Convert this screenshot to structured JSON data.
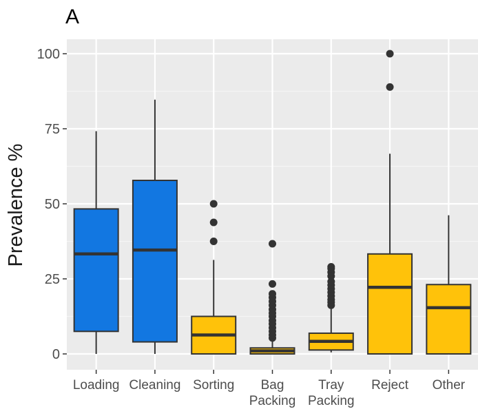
{
  "chart_data": {
    "type": "box",
    "panel_label": "A",
    "ylabel": "Prevalence %",
    "xlabel": "",
    "ylim": [
      -5,
      107
    ],
    "yticks": [
      0,
      25,
      50,
      75,
      100
    ],
    "ytick_labels": [
      "0",
      "25",
      "50",
      "75",
      "100"
    ],
    "grid": true,
    "background": "#EBEBEB",
    "categories": [
      {
        "label": [
          "Loading"
        ],
        "color": "#1277E1",
        "whisker_low": 0,
        "q1": 7.5,
        "median": 33.3,
        "q3": 48.3,
        "whisker_high": 74.2,
        "outliers": []
      },
      {
        "label": [
          "Cleaning"
        ],
        "color": "#1277E1",
        "whisker_low": 0,
        "q1": 4,
        "median": 34.6,
        "q3": 57.8,
        "whisker_high": 84.7,
        "outliers": []
      },
      {
        "label": [
          "Sorting"
        ],
        "color": "#FFC20A",
        "whisker_low": 0,
        "q1": 0,
        "median": 6.3,
        "q3": 12.5,
        "whisker_high": 31.3,
        "outliers": [
          37.5,
          43.8,
          50
        ]
      },
      {
        "label": [
          "Bag",
          "Packing"
        ],
        "color": "#FFC20A",
        "whisker_low": 0,
        "q1": 0,
        "median": 1,
        "q3": 2,
        "whisker_high": 4.5,
        "outliers": [
          5.3,
          6.3,
          7.5,
          8.7,
          10,
          11.1,
          12.5,
          13.6,
          14.8,
          16.2,
          17.5,
          18.8,
          20,
          23.3,
          36.7
        ]
      },
      {
        "label": [
          "Tray",
          "Packing"
        ],
        "color": "#FFC20A",
        "whisker_low": 0.5,
        "q1": 1.3,
        "median": 4.2,
        "q3": 6.9,
        "whisker_high": 15,
        "outliers": [
          16.2,
          17.2,
          18.1,
          19.3,
          20.5,
          21.7,
          22.9,
          24.1,
          25.9,
          27.2,
          28.4,
          29
        ]
      },
      {
        "label": [
          "Reject"
        ],
        "color": "#FFC20A",
        "whisker_low": 0,
        "q1": 0,
        "median": 22.2,
        "q3": 33.3,
        "whisker_high": 66.7,
        "outliers": [
          88.9,
          100
        ]
      },
      {
        "label": [
          "Other"
        ],
        "color": "#FFC20A",
        "whisker_low": 0,
        "q1": 0,
        "median": 15.4,
        "q3": 23.1,
        "whisker_high": 46.2,
        "outliers": []
      }
    ]
  }
}
